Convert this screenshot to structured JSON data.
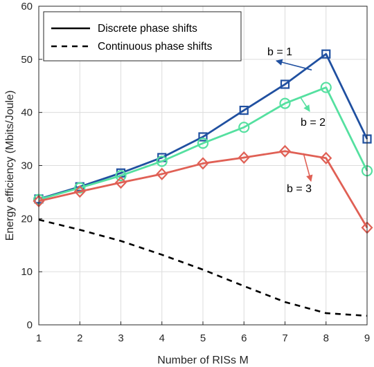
{
  "chart_data": {
    "type": "line",
    "xlabel": "Number of RISs M",
    "ylabel": "Energy efficiency (Mbits/Joule)",
    "xlim": [
      1,
      9
    ],
    "ylim": [
      0,
      60
    ],
    "xticks": [
      1,
      2,
      3,
      4,
      5,
      6,
      7,
      8,
      9
    ],
    "yticks": [
      0,
      10,
      20,
      30,
      40,
      50,
      60
    ],
    "grid": true,
    "legend": {
      "placement": "top-left",
      "entries": [
        {
          "label": "Discrete phase shifts",
          "style": "solid",
          "color": "#000000"
        },
        {
          "label": "Continuous phase shifts",
          "style": "dashed",
          "color": "#000000"
        }
      ]
    },
    "x": [
      1,
      2,
      3,
      4,
      5,
      6,
      7,
      8,
      9
    ],
    "series": [
      {
        "color": "#2050a0",
        "marker": "square",
        "style": "solid",
        "values": [
          23.7,
          26.0,
          28.6,
          31.5,
          35.4,
          40.4,
          45.3,
          51.0,
          35.0
        ]
      },
      {
        "color": "#55e0a0",
        "marker": "circle",
        "style": "solid",
        "values": [
          23.6,
          25.8,
          28.1,
          30.8,
          34.2,
          37.2,
          41.7,
          44.7,
          29.0
        ]
      },
      {
        "color": "#e06055",
        "marker": "diamond",
        "style": "solid",
        "values": [
          23.3,
          25.1,
          26.8,
          28.4,
          30.4,
          31.5,
          32.7,
          31.4,
          18.3
        ]
      },
      {
        "color": "#000000",
        "marker": "none",
        "style": "dashed",
        "values": [
          19.8,
          17.9,
          15.8,
          13.2,
          10.4,
          7.3,
          4.3,
          2.2,
          1.7
        ]
      }
    ],
    "annotations": [
      {
        "text": "b = 1",
        "series_index": 0,
        "anchor_x": 7.6,
        "anchor_y": 48.0,
        "label_x": 7.58,
        "label_y": 51.5
      },
      {
        "text": "b = 2",
        "series_index": 1,
        "anchor_x": 7.38,
        "anchor_y": 42.8,
        "label_x": 7.8,
        "label_y": 38.6
      },
      {
        "text": "b = 3",
        "series_index": 2,
        "anchor_x": 7.45,
        "anchor_y": 32.3,
        "label_x": 7.8,
        "label_y": 26.2
      }
    ]
  }
}
